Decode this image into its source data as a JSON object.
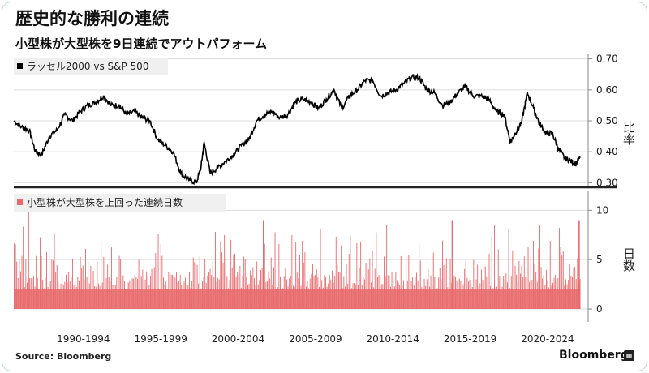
{
  "title": "歴史的な勝利の連続",
  "subtitle": "小型株が大型株を9日連続でアウトパフォーム",
  "source": "Source:  Bloomberg",
  "brand": "Bloomberg",
  "colors": {
    "ratio_line": "#000000",
    "bars": "#e86a6c",
    "divider": "#222222",
    "grid": "#dddddd"
  },
  "chart_data": [
    {
      "type": "line",
      "series": [
        {
          "name": "ラッセル2000 vs S&P 500"
        }
      ],
      "y_axis_label": "比率",
      "ylim": [
        0.28,
        0.72
      ],
      "yticks": [
        "0.30",
        "0.40",
        "0.50",
        "0.60",
        "0.70"
      ],
      "x_range": [
        1988.0,
        2024.6
      ],
      "grid": "horizontal",
      "legend_position": "top-left",
      "points": [
        [
          1988.0,
          0.5
        ],
        [
          1988.5,
          0.48
        ],
        [
          1989.0,
          0.47
        ],
        [
          1989.4,
          0.4
        ],
        [
          1989.8,
          0.39
        ],
        [
          1990.3,
          0.45
        ],
        [
          1990.8,
          0.47
        ],
        [
          1991.3,
          0.52
        ],
        [
          1991.8,
          0.5
        ],
        [
          1992.3,
          0.53
        ],
        [
          1992.8,
          0.55
        ],
        [
          1993.3,
          0.56
        ],
        [
          1993.8,
          0.58
        ],
        [
          1994.3,
          0.55
        ],
        [
          1994.8,
          0.55
        ],
        [
          1995.3,
          0.52
        ],
        [
          1995.8,
          0.53
        ],
        [
          1996.3,
          0.51
        ],
        [
          1996.8,
          0.5
        ],
        [
          1997.3,
          0.44
        ],
        [
          1997.8,
          0.42
        ],
        [
          1998.3,
          0.4
        ],
        [
          1998.8,
          0.33
        ],
        [
          1999.3,
          0.31
        ],
        [
          1999.8,
          0.3
        ],
        [
          2000.1,
          0.35
        ],
        [
          2000.3,
          0.43
        ],
        [
          2000.7,
          0.33
        ],
        [
          2001.2,
          0.35
        ],
        [
          2001.7,
          0.37
        ],
        [
          2002.2,
          0.39
        ],
        [
          2002.7,
          0.42
        ],
        [
          2003.2,
          0.44
        ],
        [
          2003.7,
          0.5
        ],
        [
          2004.2,
          0.52
        ],
        [
          2004.7,
          0.53
        ],
        [
          2005.2,
          0.51
        ],
        [
          2005.7,
          0.52
        ],
        [
          2006.2,
          0.56
        ],
        [
          2006.7,
          0.57
        ],
        [
          2007.2,
          0.56
        ],
        [
          2007.7,
          0.54
        ],
        [
          2008.2,
          0.57
        ],
        [
          2008.7,
          0.6
        ],
        [
          2009.2,
          0.54
        ],
        [
          2009.7,
          0.58
        ],
        [
          2010.2,
          0.6
        ],
        [
          2010.7,
          0.63
        ],
        [
          2011.2,
          0.63
        ],
        [
          2011.7,
          0.58
        ],
        [
          2012.2,
          0.59
        ],
        [
          2012.7,
          0.6
        ],
        [
          2013.2,
          0.62
        ],
        [
          2013.7,
          0.64
        ],
        [
          2014.2,
          0.64
        ],
        [
          2014.7,
          0.6
        ],
        [
          2015.2,
          0.59
        ],
        [
          2015.7,
          0.55
        ],
        [
          2016.2,
          0.56
        ],
        [
          2016.7,
          0.59
        ],
        [
          2017.2,
          0.61
        ],
        [
          2017.7,
          0.58
        ],
        [
          2018.2,
          0.58
        ],
        [
          2018.7,
          0.57
        ],
        [
          2019.2,
          0.53
        ],
        [
          2019.7,
          0.52
        ],
        [
          2020.1,
          0.43
        ],
        [
          2020.4,
          0.46
        ],
        [
          2020.8,
          0.49
        ],
        [
          2021.2,
          0.59
        ],
        [
          2021.6,
          0.54
        ],
        [
          2022.0,
          0.49
        ],
        [
          2022.4,
          0.46
        ],
        [
          2022.8,
          0.46
        ],
        [
          2023.2,
          0.41
        ],
        [
          2023.6,
          0.38
        ],
        [
          2024.0,
          0.37
        ],
        [
          2024.3,
          0.36
        ],
        [
          2024.6,
          0.38
        ]
      ]
    },
    {
      "type": "bar",
      "series": [
        {
          "name": "小型株が大型株を上回った連続日数"
        }
      ],
      "y_axis_label": "日数",
      "ylim": [
        0,
        12
      ],
      "yticks": [
        "0",
        "5",
        "10"
      ],
      "grid": "horizontal",
      "legend_position": "top-left",
      "categories": [
        "1990-1994",
        "1995-1999",
        "2000-2004",
        "2005-2009",
        "2010-2014",
        "2015-2019",
        "2020-2024"
      ],
      "peaks": [
        {
          "year": 1988.9,
          "days": 11
        },
        {
          "year": 2004.1,
          "days": 9
        },
        {
          "year": 2016.3,
          "days": 9
        },
        {
          "year": 2024.5,
          "days": 9
        }
      ]
    }
  ]
}
